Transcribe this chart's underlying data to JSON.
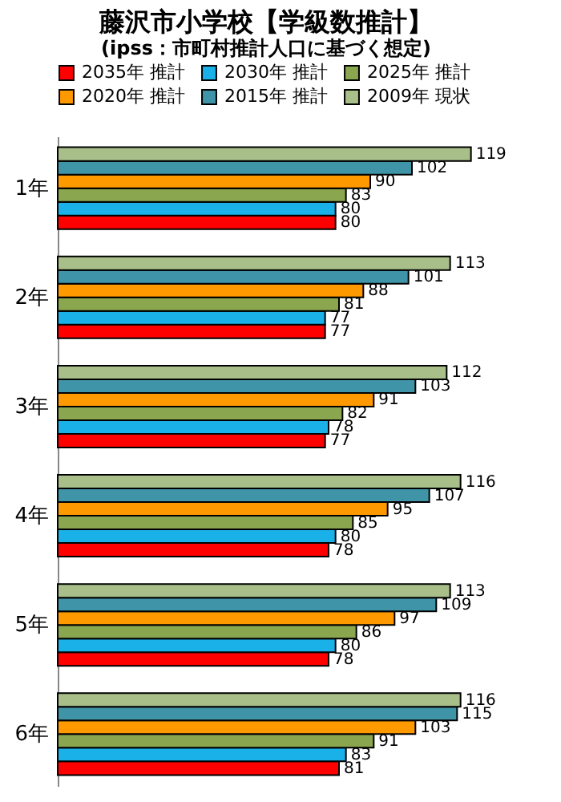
{
  "chart_data": {
    "type": "bar",
    "orientation": "horizontal",
    "title": "藤沢市小学校【学級数推計】",
    "subtitle": "(ipss：市町村推計人口に基づく想定)",
    "categories": [
      "1年",
      "2年",
      "3年",
      "4年",
      "5年",
      "6年"
    ],
    "series": [
      {
        "name": "2035年 推計",
        "color": "#ff0000",
        "values": [
          80,
          77,
          77,
          78,
          78,
          81
        ]
      },
      {
        "name": "2030年 推計",
        "color": "#1ab0e8",
        "values": [
          80,
          77,
          78,
          80,
          80,
          83
        ]
      },
      {
        "name": "2025年 推計",
        "color": "#8aa64e",
        "values": [
          83,
          81,
          82,
          85,
          86,
          91
        ]
      },
      {
        "name": "2020年 推計",
        "color": "#ff9900",
        "values": [
          90,
          88,
          91,
          95,
          97,
          103
        ]
      },
      {
        "name": "2015年 推計",
        "color": "#3f94a8",
        "values": [
          102,
          101,
          103,
          107,
          109,
          115
        ]
      },
      {
        "name": "2009年 現状",
        "color": "#a8bf8a",
        "values": [
          119,
          113,
          112,
          116,
          113,
          116
        ]
      }
    ],
    "data_labels": true,
    "legend": "top",
    "grid": false,
    "tick_labels": "y"
  }
}
